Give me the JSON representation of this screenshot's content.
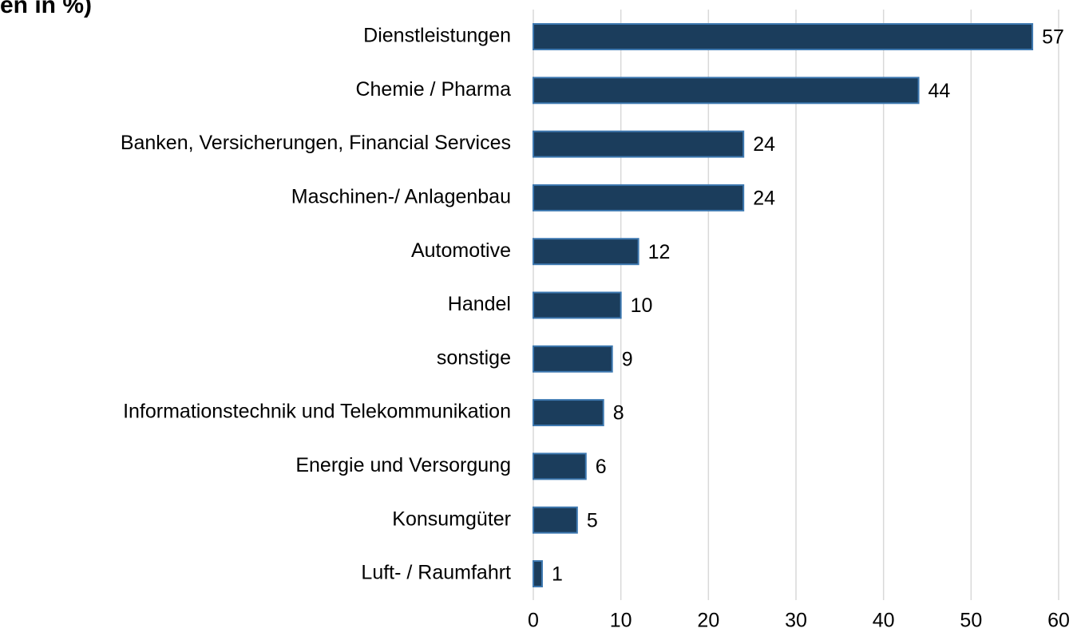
{
  "chart_data": {
    "type": "bar",
    "orientation": "horizontal",
    "title": "en in %)",
    "categories": [
      "Dienstleistungen",
      "Chemie / Pharma",
      "Banken, Versicherungen, Financial Services",
      "Maschinen-/ Anlagenbau",
      "Automotive",
      "Handel",
      "sonstige",
      "Informationstechnik und Telekommunikation",
      "Energie und Versorgung",
      "Konsumgüter",
      "Luft- / Raumfahrt"
    ],
    "values": [
      57,
      44,
      24,
      24,
      12,
      10,
      9,
      8,
      6,
      5,
      1
    ],
    "color": "#1b3d5c",
    "edge_color": "#3d78b0",
    "xlim": [
      0,
      60
    ],
    "xticks": [
      0,
      10,
      20,
      30,
      40,
      50,
      60
    ],
    "grid": true
  }
}
